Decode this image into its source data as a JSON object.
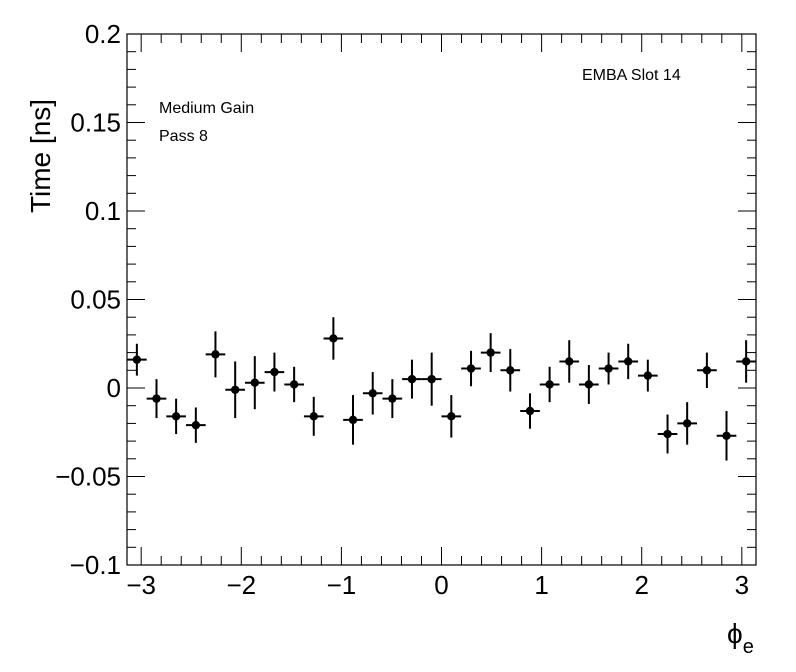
{
  "chart_data": {
    "type": "scatter",
    "xlabel": "ϕ",
    "xlabel_sub": "e",
    "ylabel": "Time [ns]",
    "xlim": [
      -3.1416,
      3.1416
    ],
    "ylim": [
      -0.1,
      0.2
    ],
    "xticks": [
      -3,
      -2,
      -1,
      0,
      1,
      2,
      3
    ],
    "xtick_labels": [
      "−3",
      "−2",
      "−1",
      "0",
      "1",
      "2",
      "3"
    ],
    "yticks": [
      -0.1,
      -0.05,
      0,
      0.05,
      0.1,
      0.15,
      0.2
    ],
    "ytick_labels": [
      "−0.1",
      "−0.05",
      "0",
      "0.05",
      "0.1",
      "0.15",
      "0.2"
    ],
    "annotations": {
      "module": "EMBA Slot 14",
      "gain": "Medium Gain",
      "pass": "Pass 8"
    },
    "series": [
      {
        "x_half_width": 0.0982,
        "x": [
          -3.043,
          -2.847,
          -2.651,
          -2.454,
          -2.258,
          -2.061,
          -1.865,
          -1.669,
          -1.472,
          -1.276,
          -1.08,
          -0.884,
          -0.687,
          -0.491,
          -0.295,
          -0.098,
          0.098,
          0.295,
          0.491,
          0.687,
          0.884,
          1.08,
          1.276,
          1.472,
          1.669,
          1.865,
          2.061,
          2.258,
          2.454,
          2.651,
          2.847,
          3.043
        ],
        "y": [
          0.016,
          -0.006,
          -0.016,
          -0.021,
          0.019,
          -0.001,
          0.003,
          0.009,
          0.002,
          -0.016,
          0.028,
          -0.018,
          -0.003,
          -0.006,
          0.005,
          0.005,
          -0.016,
          0.011,
          0.02,
          0.01,
          -0.013,
          0.002,
          0.015,
          0.002,
          0.011,
          0.015,
          0.007,
          -0.026,
          -0.02,
          0.01,
          -0.027,
          0.015
        ],
        "yerr": [
          0.009,
          0.011,
          0.01,
          0.01,
          0.013,
          0.016,
          0.015,
          0.011,
          0.01,
          0.011,
          0.012,
          0.014,
          0.012,
          0.011,
          0.011,
          0.015,
          0.012,
          0.01,
          0.011,
          0.012,
          0.01,
          0.01,
          0.012,
          0.011,
          0.009,
          0.01,
          0.009,
          0.011,
          0.012,
          0.01,
          0.014,
          0.012
        ]
      }
    ]
  }
}
